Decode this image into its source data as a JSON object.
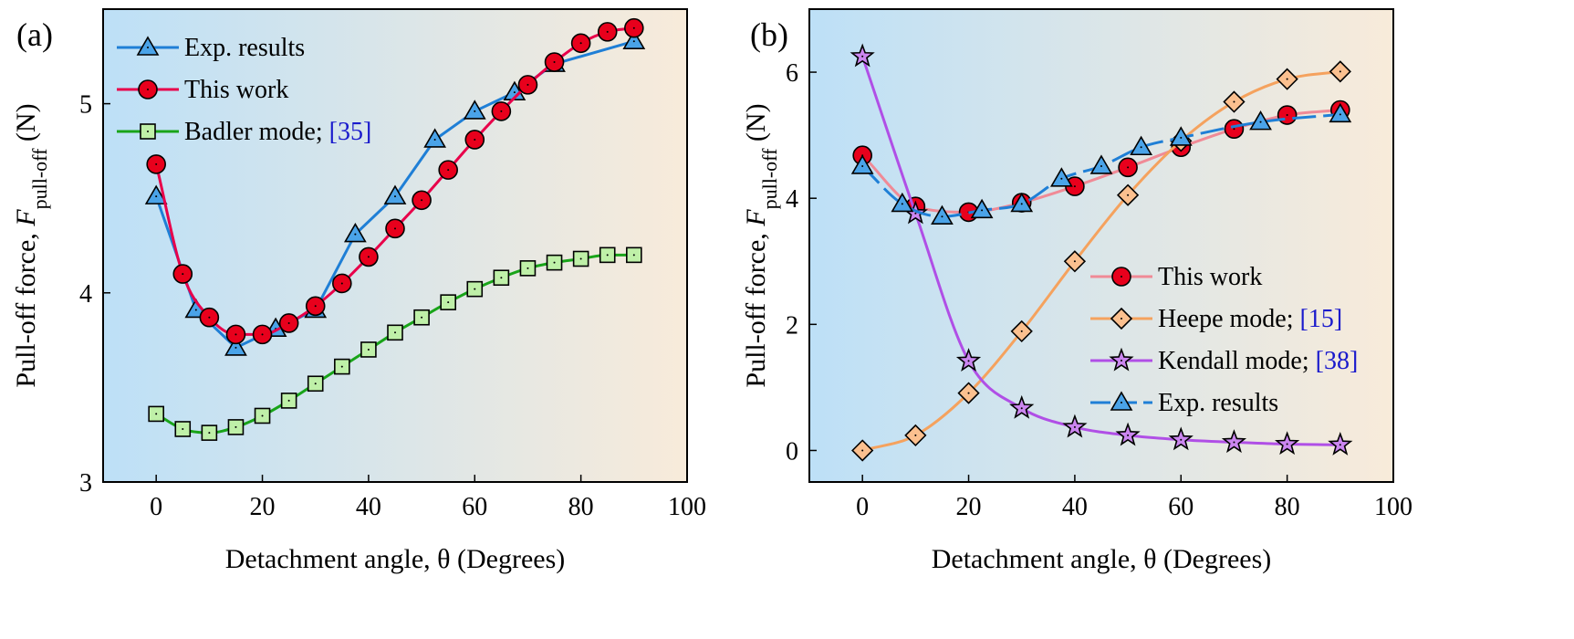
{
  "figure": {
    "colors": {
      "bg_left": "#bde0f7",
      "bg_right": "#f8ebda",
      "blue": "#1f7fd6",
      "blue_fill": "#4aa3e8",
      "red": "#e8004a",
      "red_fill": "#e8001c",
      "green": "#19a419",
      "green_fill": "#bff0a8",
      "orange": "#f5a25e",
      "orange_fill": "#fbc08f",
      "purple": "#b04fe6",
      "purple_fill": "#cb86f0",
      "pink": "#f08a96",
      "ref_blue": "#1a1acc"
    }
  },
  "chart_data": [
    {
      "type": "line",
      "panel_label": "(a)",
      "xlabel": "Detachment angle, θ (Degrees)",
      "ylabel": {
        "prefix": "Pull-off force, ",
        "symbol": "F",
        "subscript": "pull-off",
        "suffix": " (N)"
      },
      "xlim": [
        -10,
        100
      ],
      "ylim": [
        3,
        5.5
      ],
      "xticks": [
        0,
        20,
        40,
        60,
        80,
        100
      ],
      "yticks": [
        3,
        4,
        5
      ],
      "legend_position": "top-left",
      "series": [
        {
          "name": "Exp. results",
          "color_key": "blue",
          "fill_key": "blue_fill",
          "marker": "triangle",
          "line": "straight",
          "x": [
            0,
            7.5,
            15,
            22.5,
            30,
            37.5,
            45,
            52.5,
            60,
            67.5,
            75,
            90
          ],
          "y": [
            4.51,
            3.91,
            3.71,
            3.81,
            3.91,
            4.31,
            4.51,
            4.81,
            4.96,
            5.06,
            5.21,
            5.33
          ]
        },
        {
          "name": "This work",
          "color_key": "red",
          "fill_key": "red_fill",
          "marker": "circle",
          "line": "smooth",
          "x": [
            0,
            5,
            10,
            15,
            20,
            25,
            30,
            35,
            40,
            45,
            50,
            55,
            60,
            65,
            70,
            75,
            80,
            85,
            90
          ],
          "y": [
            4.68,
            4.1,
            3.87,
            3.78,
            3.78,
            3.84,
            3.93,
            4.05,
            4.19,
            4.34,
            4.49,
            4.65,
            4.81,
            4.96,
            5.1,
            5.22,
            5.32,
            5.38,
            5.4
          ]
        },
        {
          "name": "Badler mode; ",
          "ref": "[35]",
          "color_key": "green",
          "fill_key": "green_fill",
          "marker": "square",
          "line": "smooth",
          "x": [
            0,
            5,
            10,
            15,
            20,
            25,
            30,
            35,
            40,
            45,
            50,
            55,
            60,
            65,
            70,
            75,
            80,
            85,
            90
          ],
          "y": [
            3.36,
            3.28,
            3.26,
            3.29,
            3.35,
            3.43,
            3.52,
            3.61,
            3.7,
            3.79,
            3.87,
            3.95,
            4.02,
            4.08,
            4.13,
            4.16,
            4.18,
            4.2,
            4.2
          ]
        }
      ]
    },
    {
      "type": "line",
      "panel_label": "(b)",
      "xlabel": "Detachment angle, θ (Degrees)",
      "ylabel": {
        "prefix": "Pull-off force, ",
        "symbol": "F",
        "subscript": "pull-off",
        "suffix": " (N)"
      },
      "xlim": [
        -10,
        100
      ],
      "ylim": [
        -0.5,
        7
      ],
      "xticks": [
        0,
        20,
        40,
        60,
        80,
        100
      ],
      "yticks": [
        0,
        2,
        4,
        6
      ],
      "legend_position": "bottom-right",
      "series": [
        {
          "name": "This work",
          "color_key": "pink",
          "fill_key": "red_fill",
          "marker": "circle",
          "line": "smooth",
          "x": [
            0,
            10,
            20,
            30,
            40,
            50,
            60,
            70,
            80,
            90
          ],
          "y": [
            4.68,
            3.87,
            3.78,
            3.93,
            4.19,
            4.49,
            4.81,
            5.1,
            5.32,
            5.4
          ]
        },
        {
          "name": "Heepe mode; ",
          "ref": "[15]",
          "color_key": "orange",
          "fill_key": "orange_fill",
          "marker": "diamond",
          "line": "smooth",
          "x": [
            0,
            10,
            20,
            30,
            40,
            50,
            60,
            70,
            80,
            90
          ],
          "y": [
            0,
            0.24,
            0.91,
            1.89,
            3.0,
            4.05,
            4.91,
            5.53,
            5.89,
            6.01
          ]
        },
        {
          "name": "Kendall mode; ",
          "ref": "[38]",
          "color_key": "purple",
          "fill_key": "purple_fill",
          "marker": "star",
          "line": "smooth",
          "x": [
            0,
            10,
            20,
            30,
            40,
            50,
            60,
            70,
            80,
            90
          ],
          "y": [
            6.25,
            3.76,
            1.42,
            0.67,
            0.37,
            0.24,
            0.17,
            0.13,
            0.1,
            0.09
          ]
        },
        {
          "name": "Exp. results",
          "color_key": "blue",
          "fill_key": "blue_fill",
          "marker": "triangle",
          "line": "dashed",
          "x": [
            0,
            7.5,
            15,
            22.5,
            30,
            37.5,
            45,
            52.5,
            60,
            75,
            90
          ],
          "y": [
            4.51,
            3.91,
            3.71,
            3.81,
            3.91,
            4.31,
            4.51,
            4.81,
            4.96,
            5.21,
            5.33
          ]
        }
      ]
    }
  ]
}
